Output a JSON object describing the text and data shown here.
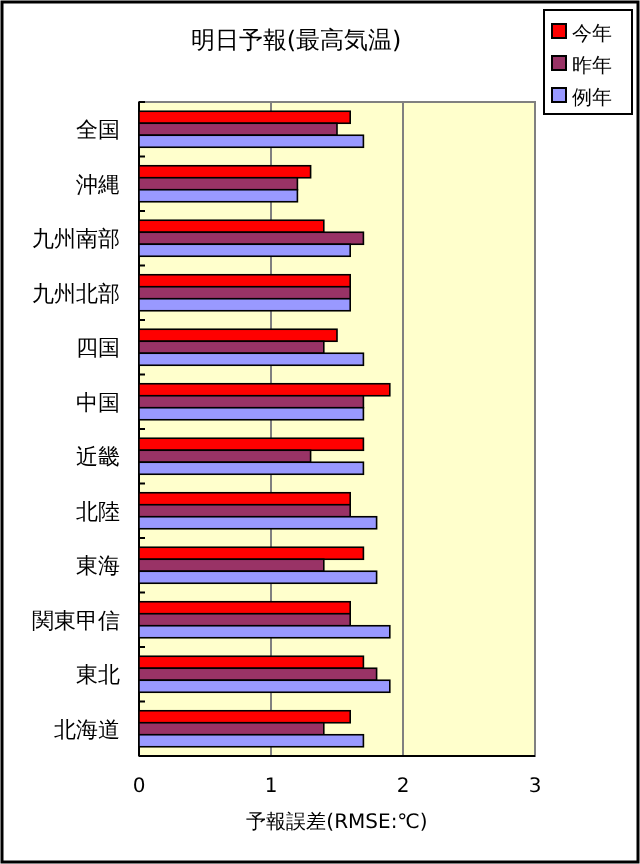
{
  "chart_data": {
    "type": "bar",
    "orientation": "horizontal",
    "title": "明日予報(最高気温)",
    "xlabel": "予報誤差(RMSE:℃)",
    "categories": [
      "全国",
      "沖縄",
      "九州南部",
      "九州北部",
      "四国",
      "中国",
      "近畿",
      "北陸",
      "東海",
      "関東甲信",
      "東北",
      "北海道"
    ],
    "series": [
      {
        "name": "今年",
        "color": "#ff0000",
        "values": [
          1.6,
          1.3,
          1.4,
          1.6,
          1.5,
          1.9,
          1.7,
          1.6,
          1.7,
          1.6,
          1.7,
          1.6
        ]
      },
      {
        "name": "昨年",
        "color": "#993366",
        "values": [
          1.5,
          1.2,
          1.7,
          1.6,
          1.4,
          1.7,
          1.3,
          1.6,
          1.4,
          1.6,
          1.8,
          1.4
        ]
      },
      {
        "name": "例年",
        "color": "#9999ff",
        "values": [
          1.7,
          1.2,
          1.6,
          1.6,
          1.7,
          1.7,
          1.7,
          1.8,
          1.8,
          1.9,
          1.9,
          1.7
        ]
      }
    ],
    "xlim": [
      0,
      3
    ],
    "xticks": [
      0,
      1,
      2,
      3
    ],
    "grid": "x",
    "legend": "top right"
  }
}
